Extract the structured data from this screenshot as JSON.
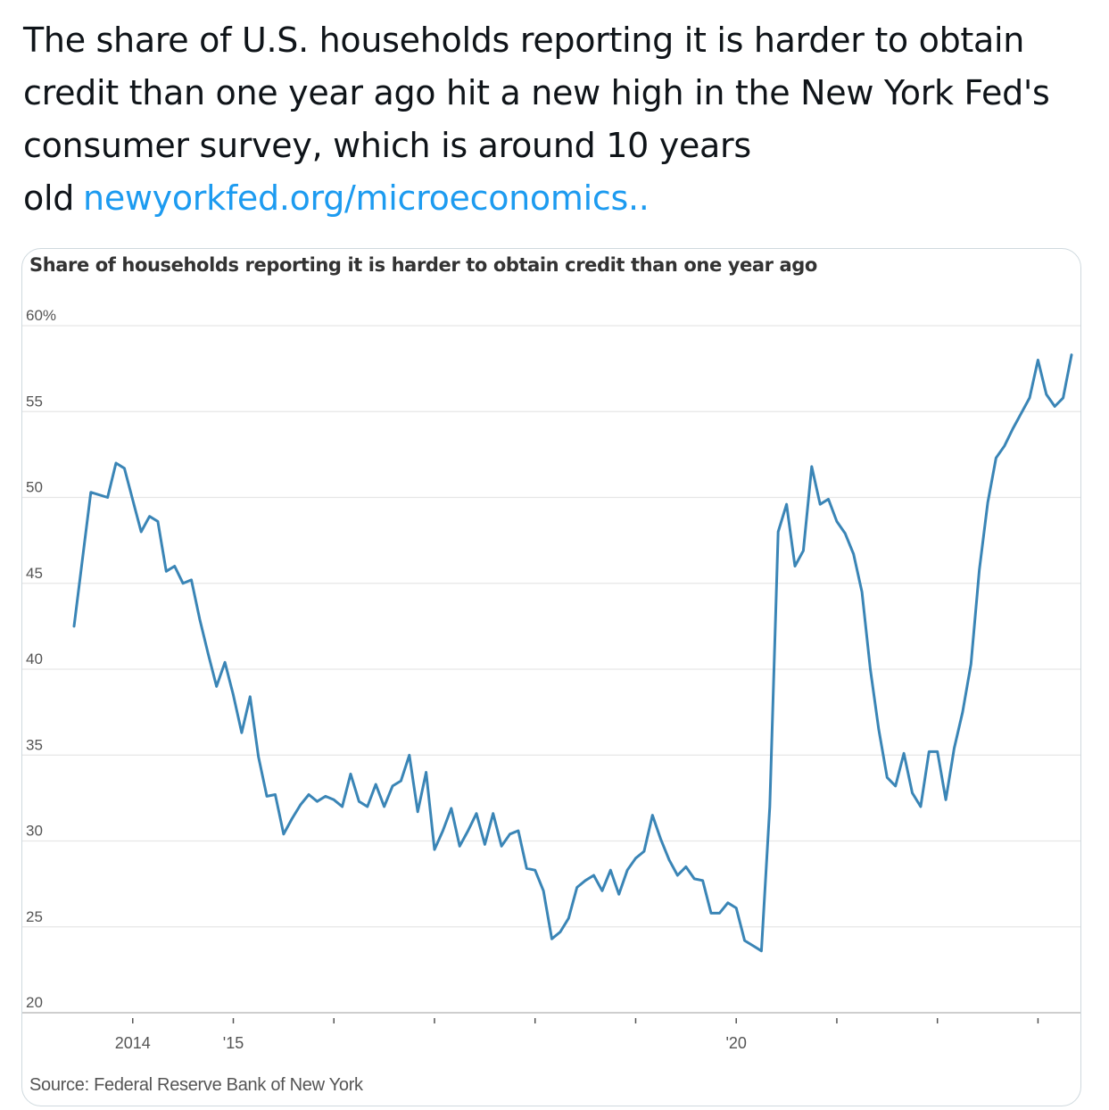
{
  "tweet": {
    "text": "The share of U.S. households reporting it is harder to obtain credit than one year ago hit a new high in the New York Fed's consumer survey, which is around 10 years old",
    "link": "newyorkfed.org/microeconomics.."
  },
  "colors": {
    "line": "#3a85b6",
    "gridline": "#e6e6e6",
    "axis_text": "#555555",
    "link": "#1d9bf0"
  },
  "chart_data": {
    "type": "line",
    "title": "Share of households reporting it is harder to obtain credit than one year ago",
    "source": "Source: Federal Reserve Bank of New York",
    "ylim": [
      20,
      60
    ],
    "xlim": [
      "2013-06",
      "2023-05"
    ],
    "y_ticks": [
      "60%",
      "55",
      "50",
      "45",
      "40",
      "35",
      "30",
      "25",
      "20"
    ],
    "y_tick_values": [
      60,
      55,
      50,
      45,
      40,
      35,
      30,
      25,
      20
    ],
    "x_tick_labels": [
      "2014",
      "'15",
      "'20"
    ],
    "x_tick_label_dates": [
      "2014-01",
      "2015-01",
      "2020-01"
    ],
    "x_tick_mark_dates": [
      "2014-01",
      "2015-01",
      "2016-01",
      "2017-01",
      "2018-01",
      "2019-01",
      "2020-01",
      "2021-01",
      "2022-01",
      "2023-01"
    ],
    "grid": true,
    "series": [
      {
        "x": [
          "2013-06",
          "2013-08",
          "2013-10",
          "2013-11",
          "2013-12",
          "2014-02",
          "2014-03",
          "2014-04",
          "2014-05",
          "2014-06",
          "2014-07",
          "2014-08",
          "2014-09",
          "2014-10",
          "2014-11",
          "2014-12",
          "2015-01",
          "2015-02",
          "2015-03",
          "2015-04",
          "2015-05",
          "2015-06",
          "2015-07",
          "2015-08",
          "2015-09",
          "2015-10",
          "2015-11",
          "2015-12",
          "2016-01",
          "2016-02",
          "2016-03",
          "2016-04",
          "2016-05",
          "2016-06",
          "2016-07",
          "2016-08",
          "2016-09",
          "2016-10",
          "2016-11",
          "2016-12",
          "2017-01",
          "2017-02",
          "2017-03",
          "2017-04",
          "2017-05",
          "2017-06",
          "2017-07",
          "2017-08",
          "2017-09",
          "2017-10",
          "2017-11",
          "2017-12",
          "2018-01",
          "2018-02",
          "2018-03",
          "2018-04",
          "2018-05",
          "2018-06",
          "2018-07",
          "2018-08",
          "2018-09",
          "2018-10",
          "2018-11",
          "2018-12",
          "2019-01",
          "2019-02",
          "2019-03",
          "2019-04",
          "2019-05",
          "2019-06",
          "2019-07",
          "2019-08",
          "2019-09",
          "2019-10",
          "2019-11",
          "2019-12",
          "2020-01",
          "2020-02",
          "2020-03",
          "2020-04",
          "2020-05",
          "2020-06",
          "2020-07",
          "2020-08",
          "2020-09",
          "2020-10",
          "2020-11",
          "2020-12",
          "2021-01",
          "2021-02",
          "2021-03",
          "2021-04",
          "2021-05",
          "2021-06",
          "2021-07",
          "2021-08",
          "2021-09",
          "2021-10",
          "2021-11",
          "2021-12",
          "2022-01",
          "2022-02",
          "2022-03",
          "2022-04",
          "2022-05",
          "2022-06",
          "2022-07",
          "2022-08",
          "2022-09",
          "2022-10",
          "2022-11",
          "2022-12",
          "2023-01",
          "2023-02",
          "2023-03",
          "2023-04",
          "2023-05"
        ],
        "values": [
          42.5,
          50.3,
          50.0,
          52.0,
          51.7,
          48.0,
          48.9,
          48.6,
          45.7,
          46.0,
          45.0,
          45.2,
          42.9,
          40.9,
          39.0,
          40.4,
          38.5,
          36.3,
          38.4,
          34.9,
          32.6,
          32.7,
          30.4,
          31.3,
          32.1,
          32.7,
          32.3,
          32.6,
          32.4,
          32.0,
          33.9,
          32.3,
          32.0,
          33.3,
          32.0,
          33.2,
          33.5,
          35.0,
          31.7,
          34.0,
          29.5,
          30.6,
          31.9,
          29.7,
          30.6,
          31.6,
          29.8,
          31.6,
          29.7,
          30.4,
          30.6,
          28.4,
          28.3,
          27.1,
          24.3,
          24.7,
          25.5,
          27.3,
          27.7,
          28.0,
          27.1,
          28.3,
          26.9,
          28.3,
          29.0,
          29.4,
          31.5,
          30.1,
          28.9,
          28.0,
          28.5,
          27.8,
          27.7,
          25.8,
          25.8,
          26.4,
          26.1,
          24.2,
          23.9,
          23.6,
          32.0,
          48.0,
          49.6,
          46.0,
          46.9,
          51.8,
          49.6,
          49.9,
          48.6,
          47.9,
          46.7,
          44.5,
          40.0,
          36.5,
          33.7,
          33.2,
          35.1,
          32.8,
          32.0,
          35.2,
          35.2,
          32.4,
          35.4,
          37.5,
          40.3,
          45.8,
          49.7,
          52.3,
          53.0,
          54.0,
          54.9,
          55.8,
          58.0,
          56.0,
          55.3,
          55.8,
          58.3
        ]
      }
    ]
  }
}
